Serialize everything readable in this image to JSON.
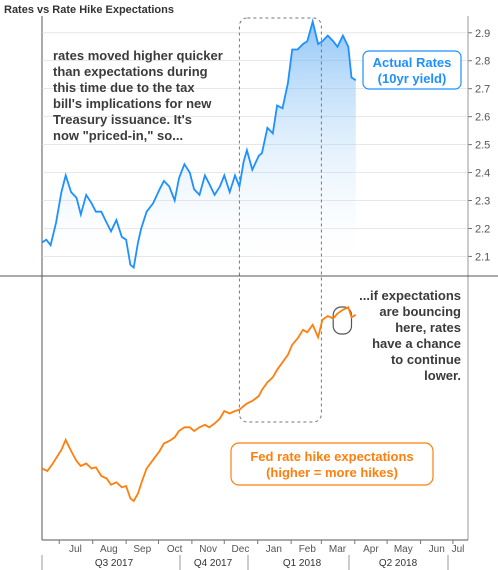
{
  "colors": {
    "rates": "#1e90ff",
    "expectations": "#ff7f0e",
    "fill_top": "#3a98f0",
    "frame": "#555555",
    "divider": "#555555",
    "gridline": "#d9d9d9"
  },
  "chart_data": {
    "type": "line",
    "title": "Rates vs Rate Hike Expectations",
    "x_month_labels": [
      "Jul",
      "Aug",
      "Sep",
      "Oct",
      "Nov",
      "Dec",
      "Jan",
      "Feb",
      "Mar",
      "Apr",
      "May",
      "Jun",
      "Jul"
    ],
    "x_quarter_labels": [
      "Q3 2017",
      "Q4 2017",
      "Q1 2018",
      "Q2 2018"
    ],
    "x_range": [
      "2017-06-15",
      "2018-07-15"
    ],
    "y_axis_right": {
      "ticks": [
        "2.1",
        "2.2",
        "2.3",
        "2.4",
        "2.5",
        "2.6",
        "2.7",
        "2.8",
        "2.9"
      ],
      "range": [
        2.03,
        2.96
      ]
    },
    "series": [
      {
        "name": "Actual Rates (10yr yield)",
        "axis": "right",
        "points": [
          [
            "2017-06-15",
            2.15
          ],
          [
            "2017-06-19",
            2.16
          ],
          [
            "2017-06-23",
            2.14
          ],
          [
            "2017-06-28",
            2.22
          ],
          [
            "2017-07-03",
            2.33
          ],
          [
            "2017-07-07",
            2.39
          ],
          [
            "2017-07-12",
            2.33
          ],
          [
            "2017-07-17",
            2.31
          ],
          [
            "2017-07-21",
            2.25
          ],
          [
            "2017-07-26",
            2.32
          ],
          [
            "2017-07-31",
            2.29
          ],
          [
            "2017-08-04",
            2.26
          ],
          [
            "2017-08-09",
            2.26
          ],
          [
            "2017-08-14",
            2.22
          ],
          [
            "2017-08-18",
            2.19
          ],
          [
            "2017-08-23",
            2.23
          ],
          [
            "2017-08-28",
            2.17
          ],
          [
            "2017-09-01",
            2.16
          ],
          [
            "2017-09-05",
            2.07
          ],
          [
            "2017-09-08",
            2.06
          ],
          [
            "2017-09-12",
            2.15
          ],
          [
            "2017-09-15",
            2.2
          ],
          [
            "2017-09-20",
            2.26
          ],
          [
            "2017-09-26",
            2.29
          ],
          [
            "2017-10-02",
            2.34
          ],
          [
            "2017-10-06",
            2.37
          ],
          [
            "2017-10-11",
            2.35
          ],
          [
            "2017-10-16",
            2.3
          ],
          [
            "2017-10-20",
            2.38
          ],
          [
            "2017-10-25",
            2.43
          ],
          [
            "2017-10-30",
            2.4
          ],
          [
            "2017-11-03",
            2.34
          ],
          [
            "2017-11-08",
            2.32
          ],
          [
            "2017-11-13",
            2.39
          ],
          [
            "2017-11-17",
            2.36
          ],
          [
            "2017-11-22",
            2.32
          ],
          [
            "2017-11-27",
            2.35
          ],
          [
            "2017-12-01",
            2.39
          ],
          [
            "2017-12-06",
            2.33
          ],
          [
            "2017-12-11",
            2.39
          ],
          [
            "2017-12-15",
            2.35
          ],
          [
            "2017-12-19",
            2.44
          ],
          [
            "2017-12-22",
            2.48
          ],
          [
            "2017-12-27",
            2.41
          ],
          [
            "2018-01-02",
            2.46
          ],
          [
            "2018-01-05",
            2.47
          ],
          [
            "2018-01-10",
            2.56
          ],
          [
            "2018-01-15",
            2.54
          ],
          [
            "2018-01-19",
            2.64
          ],
          [
            "2018-01-24",
            2.63
          ],
          [
            "2018-01-29",
            2.72
          ],
          [
            "2018-02-02",
            2.84
          ],
          [
            "2018-02-07",
            2.84
          ],
          [
            "2018-02-12",
            2.86
          ],
          [
            "2018-02-16",
            2.87
          ],
          [
            "2018-02-21",
            2.94
          ],
          [
            "2018-02-26",
            2.86
          ],
          [
            "2018-03-02",
            2.87
          ],
          [
            "2018-03-07",
            2.89
          ],
          [
            "2018-03-12",
            2.87
          ],
          [
            "2018-03-16",
            2.85
          ],
          [
            "2018-03-21",
            2.89
          ],
          [
            "2018-03-26",
            2.85
          ],
          [
            "2018-03-29",
            2.74
          ],
          [
            "2018-04-02",
            2.73
          ]
        ]
      },
      {
        "name": "Fed rate hike expectations (higher = more hikes)",
        "axis": "none",
        "points": [
          [
            "2017-06-15",
            0.3
          ],
          [
            "2017-06-20",
            0.28
          ],
          [
            "2017-06-25",
            0.34
          ],
          [
            "2017-07-03",
            0.45
          ],
          [
            "2017-07-07",
            0.53
          ],
          [
            "2017-07-12",
            0.44
          ],
          [
            "2017-07-17",
            0.36
          ],
          [
            "2017-07-21",
            0.32
          ],
          [
            "2017-07-26",
            0.34
          ],
          [
            "2017-07-31",
            0.3
          ],
          [
            "2017-08-04",
            0.31
          ],
          [
            "2017-08-09",
            0.24
          ],
          [
            "2017-08-14",
            0.22
          ],
          [
            "2017-08-18",
            0.17
          ],
          [
            "2017-08-23",
            0.19
          ],
          [
            "2017-08-28",
            0.15
          ],
          [
            "2017-09-01",
            0.16
          ],
          [
            "2017-09-05",
            0.06
          ],
          [
            "2017-09-08",
            0.04
          ],
          [
            "2017-09-12",
            0.1
          ],
          [
            "2017-09-15",
            0.18
          ],
          [
            "2017-09-20",
            0.3
          ],
          [
            "2017-09-26",
            0.37
          ],
          [
            "2017-10-02",
            0.44
          ],
          [
            "2017-10-06",
            0.5
          ],
          [
            "2017-10-11",
            0.52
          ],
          [
            "2017-10-16",
            0.55
          ],
          [
            "2017-10-20",
            0.6
          ],
          [
            "2017-10-25",
            0.63
          ],
          [
            "2017-10-30",
            0.63
          ],
          [
            "2017-11-03",
            0.6
          ],
          [
            "2017-11-08",
            0.63
          ],
          [
            "2017-11-13",
            0.65
          ],
          [
            "2017-11-17",
            0.63
          ],
          [
            "2017-11-22",
            0.66
          ],
          [
            "2017-11-27",
            0.7
          ],
          [
            "2017-12-01",
            0.76
          ],
          [
            "2017-12-06",
            0.74
          ],
          [
            "2017-12-11",
            0.76
          ],
          [
            "2017-12-15",
            0.77
          ],
          [
            "2017-12-19",
            0.8
          ],
          [
            "2017-12-22",
            0.82
          ],
          [
            "2017-12-27",
            0.84
          ],
          [
            "2018-01-02",
            0.88
          ],
          [
            "2018-01-05",
            0.93
          ],
          [
            "2018-01-10",
            0.99
          ],
          [
            "2018-01-15",
            1.03
          ],
          [
            "2018-01-19",
            1.09
          ],
          [
            "2018-01-24",
            1.15
          ],
          [
            "2018-01-29",
            1.21
          ],
          [
            "2018-02-02",
            1.29
          ],
          [
            "2018-02-07",
            1.34
          ],
          [
            "2018-02-12",
            1.41
          ],
          [
            "2018-02-16",
            1.39
          ],
          [
            "2018-02-21",
            1.45
          ],
          [
            "2018-02-26",
            1.35
          ],
          [
            "2018-03-02",
            1.49
          ],
          [
            "2018-03-07",
            1.52
          ],
          [
            "2018-03-12",
            1.5
          ],
          [
            "2018-03-16",
            1.54
          ],
          [
            "2018-03-21",
            1.57
          ],
          [
            "2018-03-26",
            1.59
          ],
          [
            "2018-03-29",
            1.51
          ],
          [
            "2018-04-02",
            1.53
          ]
        ]
      }
    ],
    "annotations": [
      "rates moved higher quicker",
      "than expectations during",
      "this time due to the tax",
      "bill's implications for new",
      "Treasury issuance.  It's",
      "now \"priced-in,\" so...",
      "...if expectations",
      "are bouncing",
      "here, rates",
      "have a chance",
      "to continue",
      "lower."
    ],
    "highlight_range": [
      "2017-12-15",
      "2018-03-01"
    ],
    "bounce_range": [
      "2018-03-12",
      "2018-03-29"
    ]
  }
}
